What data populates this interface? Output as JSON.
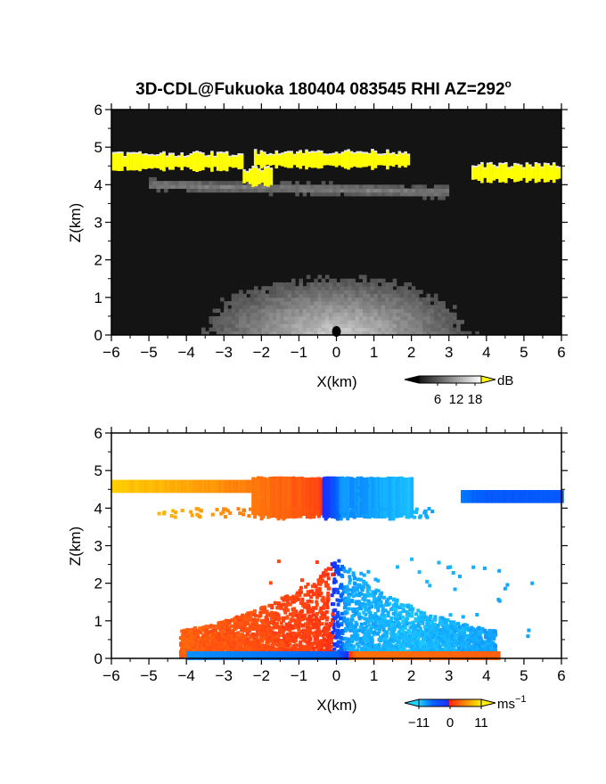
{
  "title_main": "3D-CDL@Fukuoka 180404 083545 RHI AZ=292",
  "title_deg": "o",
  "chart_data": [
    {
      "type": "heatmap",
      "panel": "reflectivity",
      "xlabel": "X(km)",
      "ylabel": "Z(km)",
      "xlim": [
        -6,
        6
      ],
      "ylim": [
        0,
        6
      ],
      "xticks": [
        "-6",
        "-5",
        "-4",
        "-3",
        "-2",
        "-1",
        "0",
        "1",
        "2",
        "3",
        "4",
        "5",
        "6"
      ],
      "yticks": [
        "0",
        "1",
        "2",
        "3",
        "4",
        "5",
        "6"
      ],
      "colorbar": {
        "unit": "dB",
        "ticks": [
          "6",
          "12",
          "18"
        ],
        "min": 0,
        "max": 20,
        "colormap": "grayscale-yellow"
      },
      "cloud_layers_gt18dB": [
        {
          "x0": -6.0,
          "x1": -2.5,
          "z": 4.6
        },
        {
          "x0": -2.2,
          "x1": 1.9,
          "z": 4.65
        },
        {
          "x0": -2.5,
          "x1": -1.7,
          "z": 4.2
        },
        {
          "x0": 3.6,
          "x1": 6.0,
          "z": 4.3
        }
      ],
      "near_surface_bright_dome": {
        "x_center": 0.0,
        "top_z": 1.3,
        "value_dB": 15
      },
      "faint_layer": {
        "x0": -5.0,
        "x1": 3.0,
        "z0": 4.0,
        "z1": 3.8,
        "value_dB": 8
      }
    },
    {
      "type": "heatmap",
      "panel": "radial-velocity",
      "xlabel": "X(km)",
      "ylabel": "Z(km)",
      "xlim": [
        -6,
        6
      ],
      "ylim": [
        0,
        6
      ],
      "xticks": [
        "-6",
        "-5",
        "-4",
        "-3",
        "-2",
        "-1",
        "0",
        "1",
        "2",
        "3",
        "4",
        "5",
        "6"
      ],
      "yticks": [
        "0",
        "1",
        "2",
        "3",
        "4",
        "5",
        "6"
      ],
      "colorbar": {
        "unit": "ms",
        "unit_exp": "−1",
        "ticks": [
          "−11",
          "0",
          "11"
        ],
        "min": -11,
        "max": 11,
        "colormap": "blue-red-yellow"
      },
      "upper_layer_velocity": [
        {
          "x": -6.0,
          "v": 9
        },
        {
          "x": -4.0,
          "v": 7
        },
        {
          "x": -2.0,
          "v": 4
        },
        {
          "x": -0.5,
          "v": 2
        },
        {
          "x": 0.1,
          "v": -8
        },
        {
          "x": 2.0,
          "v": -10
        },
        {
          "x": 4.0,
          "v": -5
        },
        {
          "x": 6.0,
          "v": -5
        }
      ],
      "lower_region_velocity": [
        {
          "x": -4.0,
          "v": 3
        },
        {
          "x": -2.0,
          "v": 2
        },
        {
          "x": -0.2,
          "v": 1
        },
        {
          "x": 0.2,
          "v": -9
        },
        {
          "x": 2.0,
          "v": -10
        },
        {
          "x": 4.0,
          "v": -9
        }
      ],
      "near_ground_return_velocity": [
        {
          "x": -4.0,
          "v": -8
        },
        {
          "x": 0.0,
          "v": -6
        },
        {
          "x": 0.5,
          "v": 4
        },
        {
          "x": 4.3,
          "v": 3
        }
      ]
    }
  ]
}
